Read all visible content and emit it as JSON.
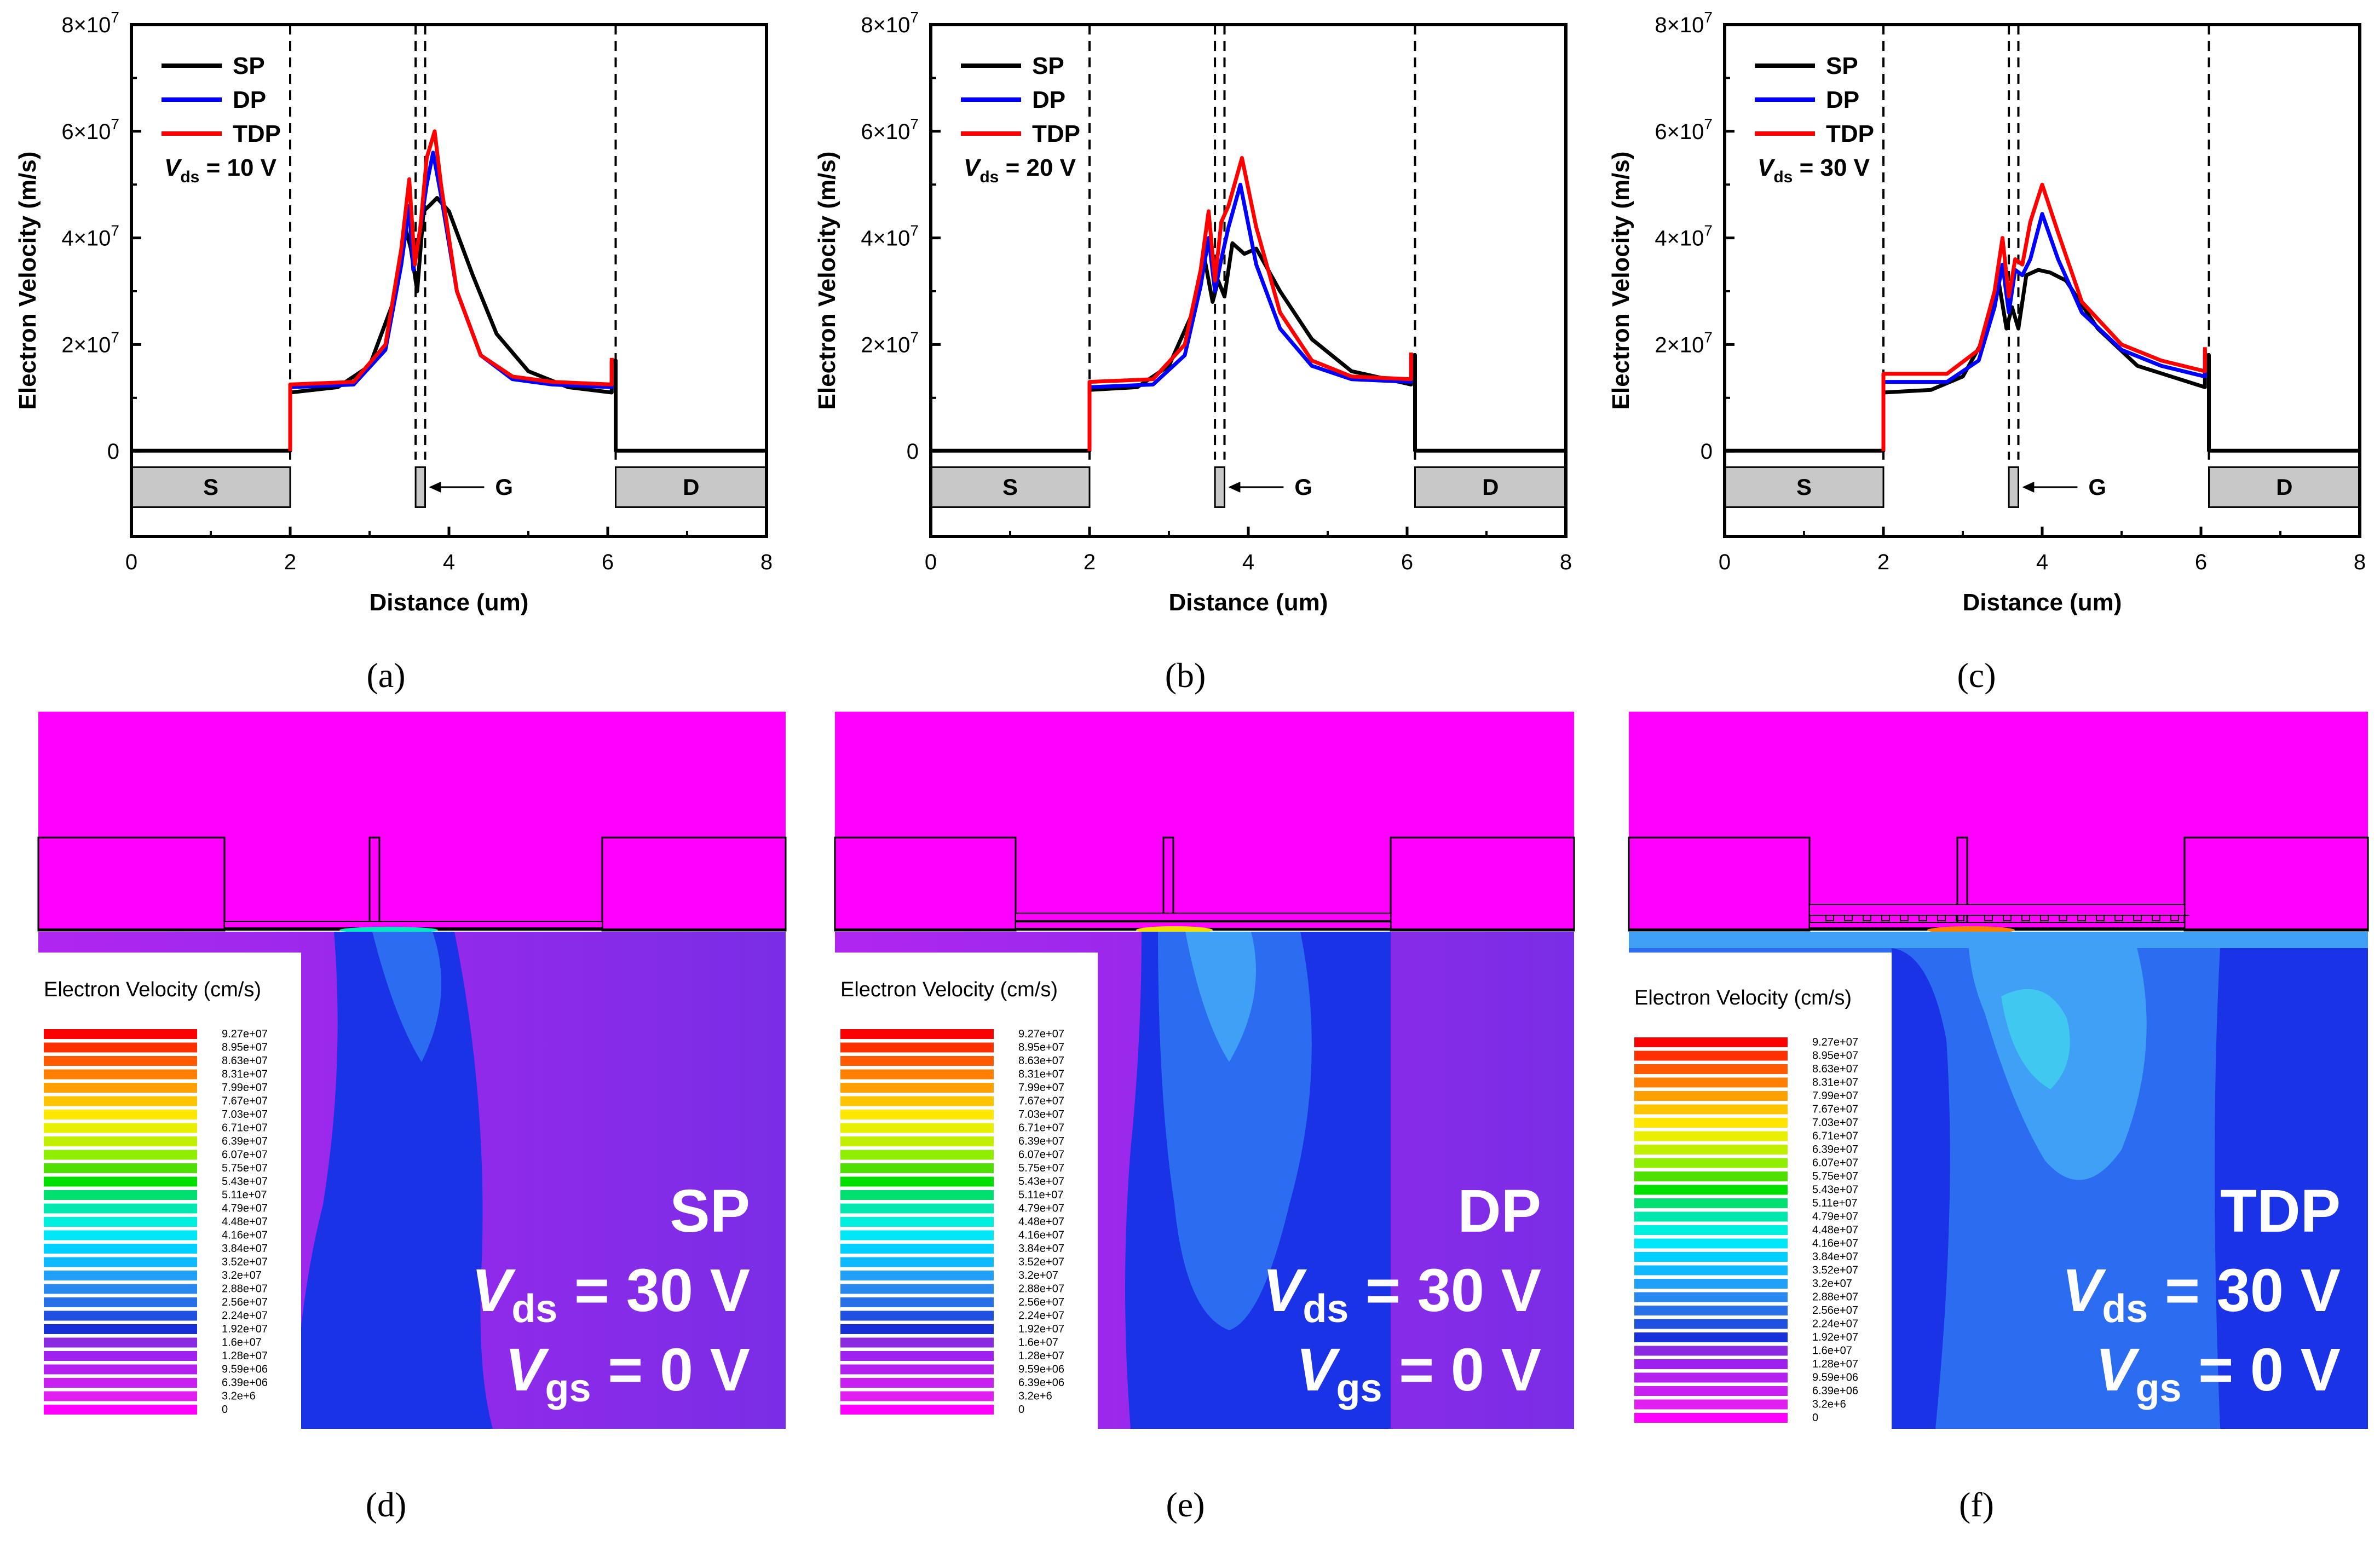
{
  "chart_data": [
    {
      "type": "line",
      "panel_label": "(a)",
      "xlabel": "Distance (um)",
      "ylabel": "Electron Velocity (m/s)",
      "xlim": [
        0,
        8
      ],
      "ylim": [
        -16000000.0,
        80000000.0
      ],
      "x_ticks": [
        "0",
        "2",
        "4",
        "6",
        "8"
      ],
      "y_ticks": [
        {
          "base": "0",
          "exp": ""
        },
        {
          "base": "2×10",
          "exp": "7"
        },
        {
          "base": "4×10",
          "exp": "7"
        },
        {
          "base": "6×10",
          "exp": "7"
        },
        {
          "base": "8×10",
          "exp": "7"
        }
      ],
      "legend": [
        "SP",
        "DP",
        "TDP"
      ],
      "condition": {
        "var": "V",
        "sub": "ds",
        "value": " = 10 V"
      },
      "electrodes": [
        "S",
        "G",
        "D"
      ],
      "dashed_x": [
        2,
        3.58,
        3.7,
        6.1
      ],
      "series": [
        {
          "name": "SP",
          "color": "#000000",
          "x": [
            0,
            2,
            2,
            2.6,
            3.0,
            3.3,
            3.45,
            3.52,
            3.6,
            3.68,
            3.75,
            3.85,
            4.0,
            4.3,
            4.6,
            5.0,
            5.5,
            6.05,
            6.05,
            6.1,
            6.1,
            8
          ],
          "y": [
            100000.0,
            100000.0,
            11000000.0,
            12000000.0,
            16000000.0,
            28000000.0,
            42000000.0,
            38000000.0,
            30000000.0,
            45000000.0,
            46000000.0,
            47500000.0,
            45000000.0,
            33000000.0,
            22000000.0,
            15000000.0,
            12000000.0,
            11000000.0,
            17000000.0,
            17000000.0,
            100000.0,
            100000.0
          ]
        },
        {
          "name": "DP",
          "color": "#0000ff",
          "x": [
            2,
            2,
            2.8,
            3.2,
            3.4,
            3.5,
            3.55,
            3.62,
            3.72,
            3.8,
            3.9,
            4.1,
            4.4,
            4.8,
            5.3,
            6.05,
            6.05
          ],
          "y": [
            0,
            12000000.0,
            12500000.0,
            19000000.0,
            35000000.0,
            46000000.0,
            34000000.0,
            40000000.0,
            50000000.0,
            56000000.0,
            48000000.0,
            30000000.0,
            18000000.0,
            13500000.0,
            12500000.0,
            12000000.0,
            17000000.0
          ]
        },
        {
          "name": "TDP",
          "color": "#ff0000",
          "x": [
            2,
            2,
            2.8,
            3.2,
            3.4,
            3.5,
            3.57,
            3.64,
            3.72,
            3.82,
            3.9,
            4.1,
            4.4,
            4.8,
            5.3,
            6.05,
            6.05
          ],
          "y": [
            0,
            12500000.0,
            13000000.0,
            20000000.0,
            38000000.0,
            51000000.0,
            35000000.0,
            42000000.0,
            55000000.0,
            60000000.0,
            50000000.0,
            30000000.0,
            18000000.0,
            14000000.0,
            13000000.0,
            12500000.0,
            17500000.0
          ]
        }
      ]
    },
    {
      "type": "line",
      "panel_label": "(b)",
      "xlabel": "Distance (um)",
      "ylabel": "Electron Velocity (m/s)",
      "xlim": [
        0,
        8
      ],
      "ylim": [
        -16000000.0,
        80000000.0
      ],
      "x_ticks": [
        "0",
        "2",
        "4",
        "6",
        "8"
      ],
      "y_ticks": [
        {
          "base": "0",
          "exp": ""
        },
        {
          "base": "2×10",
          "exp": "7"
        },
        {
          "base": "4×10",
          "exp": "7"
        },
        {
          "base": "6×10",
          "exp": "7"
        },
        {
          "base": "8×10",
          "exp": "7"
        }
      ],
      "legend": [
        "SP",
        "DP",
        "TDP"
      ],
      "condition": {
        "var": "V",
        "sub": "ds",
        "value": " = 20 V"
      },
      "electrodes": [
        "S",
        "G",
        "D"
      ],
      "dashed_x": [
        2,
        3.58,
        3.7,
        6.1
      ],
      "series": [
        {
          "name": "SP",
          "color": "#000000",
          "x": [
            0,
            2,
            2,
            2.6,
            3.0,
            3.3,
            3.45,
            3.55,
            3.62,
            3.7,
            3.8,
            3.95,
            4.1,
            4.4,
            4.8,
            5.3,
            6.05,
            6.05,
            6.1,
            6.1,
            8
          ],
          "y": [
            100000.0,
            100000.0,
            11500000.0,
            12000000.0,
            16000000.0,
            26000000.0,
            36000000.0,
            28000000.0,
            32000000.0,
            29000000.0,
            39000000.0,
            37000000.0,
            38000000.0,
            30000000.0,
            21000000.0,
            15000000.0,
            12500000.0,
            18000000.0,
            18000000.0,
            100000.0,
            100000.0
          ]
        },
        {
          "name": "DP",
          "color": "#0000ff",
          "x": [
            2,
            2,
            2.8,
            3.2,
            3.4,
            3.5,
            3.58,
            3.66,
            3.75,
            3.9,
            4.1,
            4.4,
            4.8,
            5.3,
            6.05,
            6.05
          ],
          "y": [
            0,
            12000000.0,
            12500000.0,
            18000000.0,
            31000000.0,
            40000000.0,
            30000000.0,
            36000000.0,
            42000000.0,
            50000000.0,
            35000000.0,
            23000000.0,
            16000000.0,
            13500000.0,
            13000000.0,
            18000000.0
          ]
        },
        {
          "name": "TDP",
          "color": "#ff0000",
          "x": [
            2,
            2,
            2.8,
            3.2,
            3.4,
            3.5,
            3.58,
            3.66,
            3.75,
            3.92,
            4.1,
            4.4,
            4.8,
            5.3,
            6.05,
            6.05
          ],
          "y": [
            0,
            13000000.0,
            13500000.0,
            20000000.0,
            34000000.0,
            45000000.0,
            32000000.0,
            43000000.0,
            46000000.0,
            55000000.0,
            42000000.0,
            26000000.0,
            17000000.0,
            14000000.0,
            13500000.0,
            18500000.0
          ]
        }
      ]
    },
    {
      "type": "line",
      "panel_label": "(c)",
      "xlabel": "Distance (um)",
      "ylabel": "Electron Velocity (m/s)",
      "xlim": [
        0,
        8
      ],
      "ylim": [
        -16000000.0,
        80000000.0
      ],
      "x_ticks": [
        "0",
        "2",
        "4",
        "6",
        "8"
      ],
      "y_ticks": [
        {
          "base": "0",
          "exp": ""
        },
        {
          "base": "2×10",
          "exp": "7"
        },
        {
          "base": "4×10",
          "exp": "7"
        },
        {
          "base": "6×10",
          "exp": "7"
        },
        {
          "base": "8×10",
          "exp": "7"
        }
      ],
      "legend": [
        "SP",
        "DP",
        "TDP"
      ],
      "condition": {
        "var": "V",
        "sub": "ds",
        "value": " = 30 V"
      },
      "electrodes": [
        "S",
        "G",
        "D"
      ],
      "dashed_x": [
        2,
        3.58,
        3.7,
        6.1
      ],
      "series": [
        {
          "name": "SP",
          "color": "#000000",
          "x": [
            0,
            2,
            2,
            2.6,
            3.0,
            3.3,
            3.45,
            3.55,
            3.62,
            3.7,
            3.8,
            3.95,
            4.1,
            4.3,
            4.7,
            5.2,
            6.05,
            6.05,
            6.1,
            6.1,
            8
          ],
          "y": [
            100000.0,
            100000.0,
            11000000.0,
            11500000.0,
            14000000.0,
            22000000.0,
            32000000.0,
            23000000.0,
            27000000.0,
            23000000.0,
            33000000.0,
            34000000.0,
            33500000.0,
            32000000.0,
            23000000.0,
            16000000.0,
            12000000.0,
            18000000.0,
            18000000.0,
            100000.0,
            100000.0
          ]
        },
        {
          "name": "DP",
          "color": "#0000ff",
          "x": [
            2,
            2,
            2.8,
            3.2,
            3.4,
            3.5,
            3.58,
            3.66,
            3.75,
            3.85,
            4.0,
            4.2,
            4.5,
            5.0,
            5.5,
            6.05,
            6.05
          ],
          "y": [
            0,
            13000000.0,
            13000000.0,
            17000000.0,
            27000000.0,
            35000000.0,
            26000000.0,
            34000000.0,
            33000000.0,
            36000000.0,
            44500000.0,
            36000000.0,
            26000000.0,
            19000000.0,
            16000000.0,
            14000000.0,
            19000000.0
          ]
        },
        {
          "name": "TDP",
          "color": "#ff0000",
          "x": [
            2,
            2,
            2.8,
            3.2,
            3.4,
            3.5,
            3.58,
            3.66,
            3.75,
            3.85,
            4.0,
            4.2,
            4.5,
            5.0,
            5.5,
            6.05,
            6.05
          ],
          "y": [
            0,
            14500000.0,
            14500000.0,
            19000000.0,
            30000000.0,
            40000000.0,
            29000000.0,
            36000000.0,
            35000000.0,
            43000000.0,
            50000000.0,
            41000000.0,
            28000000.0,
            20000000.0,
            17000000.0,
            15000000.0,
            19500000.0
          ]
        }
      ]
    },
    {
      "type": "heatmap",
      "panel_label": "(d)",
      "colorbar_title": "Electron Velocity (cm/s)",
      "structure": "SP",
      "conditions": [
        {
          "var": "V",
          "sub": "ds",
          "value": " = 30 V"
        },
        {
          "var": "V",
          "sub": "gs",
          "value": " = 0 V"
        }
      ]
    },
    {
      "type": "heatmap",
      "panel_label": "(e)",
      "colorbar_title": "Electron Velocity (cm/s)",
      "structure": "DP",
      "conditions": [
        {
          "var": "V",
          "sub": "ds",
          "value": " = 30 V"
        },
        {
          "var": "V",
          "sub": "gs",
          "value": " = 0 V"
        }
      ]
    },
    {
      "type": "heatmap",
      "panel_label": "(f)",
      "colorbar_title": "Electron Velocity (cm/s)",
      "structure": "TDP",
      "conditions": [
        {
          "var": "V",
          "sub": "ds",
          "value": " = 30 V"
        },
        {
          "var": "V",
          "sub": "gs",
          "value": " = 0 V"
        }
      ]
    }
  ],
  "colorbar_levels": [
    "9.27e+07",
    "8.95e+07",
    "8.63e+07",
    "8.31e+07",
    "7.99e+07",
    "7.67e+07",
    "7.03e+07",
    "6.71e+07",
    "6.39e+07",
    "6.07e+07",
    "5.75e+07",
    "5.43e+07",
    "5.11e+07",
    "4.79e+07",
    "4.48e+07",
    "4.16e+07",
    "3.84e+07",
    "3.52e+07",
    "3.2e+07",
    "2.88e+07",
    "2.56e+07",
    "2.24e+07",
    "1.92e+07",
    "1.6e+07",
    "1.28e+07",
    "9.59e+06",
    "6.39e+06",
    "3.2e+6",
    "0"
  ],
  "colorbar_colors": [
    "#ff0000",
    "#ff3000",
    "#ff5a00",
    "#ff8000",
    "#ffa000",
    "#ffc400",
    "#ffe600",
    "#e8f000",
    "#c0f000",
    "#90ee00",
    "#50e000",
    "#00e000",
    "#00e070",
    "#00e8b0",
    "#00f0e0",
    "#00e8f8",
    "#00d0ff",
    "#10b8ff",
    "#20a0f8",
    "#2888f0",
    "#2870e8",
    "#2050e0",
    "#1830d8",
    "#8a2be2",
    "#a020f0",
    "#b420f0",
    "#c820f0",
    "#e020f0",
    "#ff00ff"
  ],
  "colors": {
    "sp": "#000000",
    "dp": "#0000ff",
    "tdp": "#ff0000",
    "magenta": "#ff00ff",
    "violet": "#8a2be2",
    "deep_blue": "#1a33e6",
    "mid_blue": "#2b6cf0",
    "light_blue": "#3fa0f5",
    "electrode_fill": "#c8c8c8"
  }
}
